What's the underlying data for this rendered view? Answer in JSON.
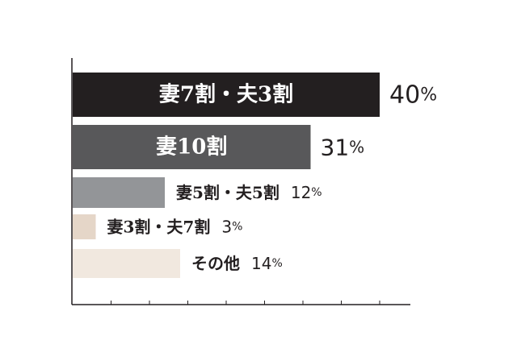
{
  "chart_data": {
    "type": "bar",
    "orientation": "horizontal",
    "categories": [
      "妻7割・夫3割",
      "妻10割",
      "妻5割・夫5割",
      "妻3割・夫7割",
      "その他"
    ],
    "values": [
      40,
      31,
      12,
      3,
      14
    ],
    "value_labels": [
      "40",
      "31",
      "12",
      "3",
      "14"
    ],
    "unit": "%",
    "colors": [
      "#231f20",
      "#58585a",
      "#939598",
      "#e5d6c8",
      "#f1e8df"
    ],
    "label_colors": [
      "#ffffff",
      "#ffffff",
      "#231f20",
      "#231f20",
      "#231f20"
    ],
    "label_position": [
      "inside",
      "inside",
      "outside",
      "outside",
      "outside"
    ],
    "xlim": [
      0,
      44
    ],
    "grid": false,
    "legend": "none"
  }
}
